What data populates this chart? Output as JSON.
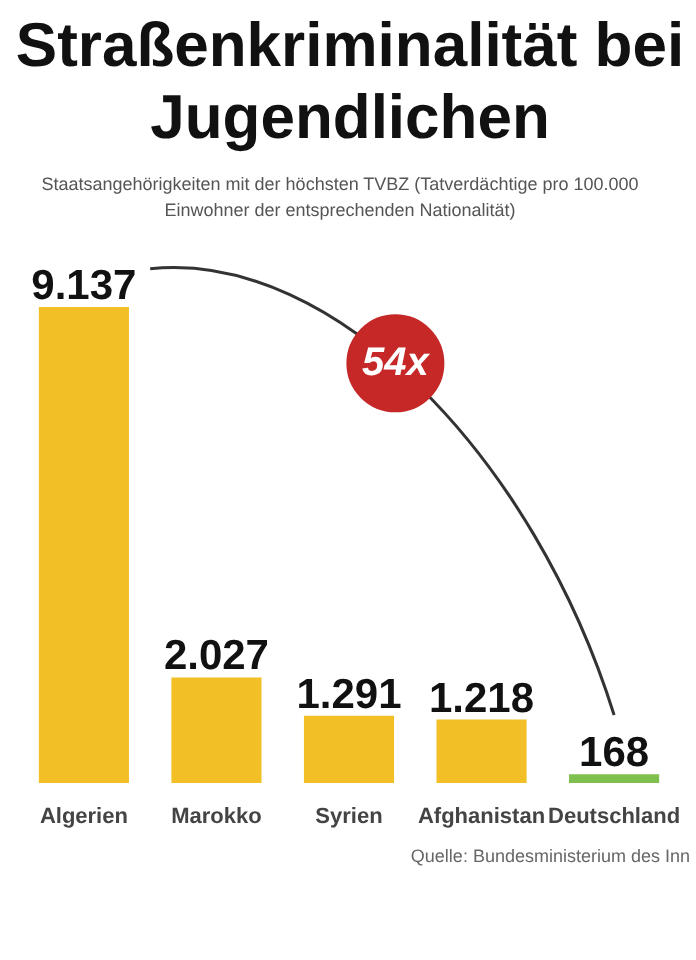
{
  "chart_data": {
    "type": "bar",
    "title": "Straßenkriminalität bei Jugendlichen",
    "subtitle": "Staatsangehörigkeiten mit der höchsten TVBZ (Tatverdächtige pro 100.000 Einwohner der entsprechenden Nationalität)",
    "categories": [
      "Algerien",
      "Marokko",
      "Syrien",
      "Afghanistan",
      "Deutschland"
    ],
    "values": [
      9137,
      2027,
      1291,
      1218,
      168
    ],
    "colors": [
      "#f2bf27",
      "#f2bf27",
      "#f2bf27",
      "#f2bf27",
      "#7fbf4d"
    ],
    "value_labels": [
      "9.137",
      "2.027",
      "1.291",
      "1.218",
      "168"
    ],
    "tick_labels": "x",
    "grid": false,
    "annotations": [
      "54x",
      "Quelle: Bundesministerium des Inn"
    ]
  }
}
